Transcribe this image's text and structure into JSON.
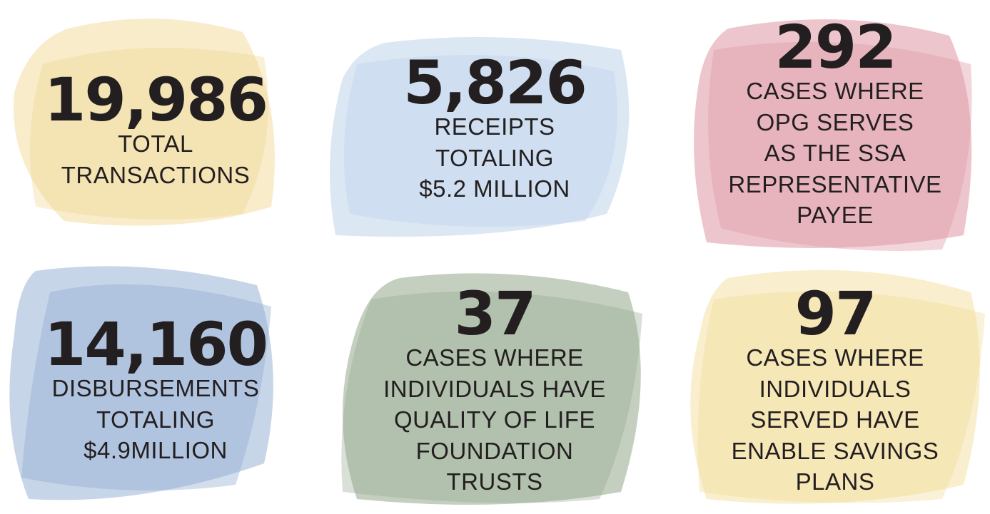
{
  "stats": [
    {
      "value": "19,986",
      "lines": [
        "TOTAL",
        "TRANSACTIONS"
      ]
    },
    {
      "value": "5,826",
      "lines": [
        "RECEIPTS",
        "TOTALING",
        "$5.2 MILLION"
      ]
    },
    {
      "value": "292",
      "lines": [
        "CASES WHERE",
        "OPG SERVES",
        "AS THE SSA",
        "REPRESENTATIVE",
        "PAYEE"
      ]
    },
    {
      "value": "14,160",
      "lines": [
        "DISBURSEMENTS",
        "TOTALING",
        "$4.9MILLION"
      ]
    },
    {
      "value": "37",
      "lines": [
        "CASES WHERE",
        "INDIVIDUALS HAVE",
        "QUALITY OF LIFE",
        "FOUNDATION",
        "TRUSTS"
      ]
    },
    {
      "value": "97",
      "lines": [
        "CASES WHERE",
        "INDIVIDUALS",
        "SERVED HAVE",
        "ENABLE SAVINGS",
        "PLANS"
      ]
    }
  ]
}
